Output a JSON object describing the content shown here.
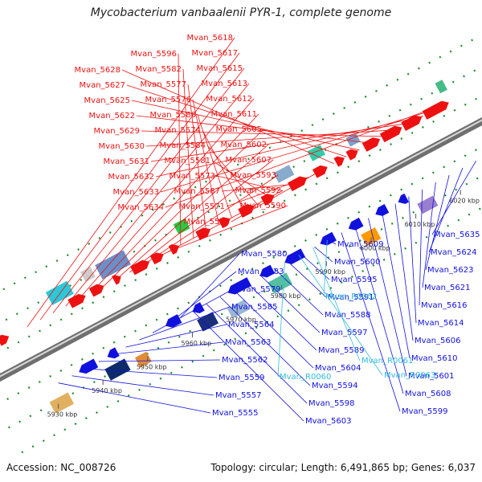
{
  "title": "Mycobacterium vanbaalenii PYR-1, complete genome",
  "footer": {
    "accession": "Accession: NC_008726",
    "summary": "Topology: circular; Length: 6,491,865 bp; Genes: 6,037"
  },
  "colors": {
    "plus": "#ee1111",
    "minus": "#1111dd",
    "rna": "#33bbdd",
    "backbone": "#888888"
  },
  "ticks": [
    "5930 kbp",
    "5940 kbp",
    "5950 kbp",
    "5960 kbp",
    "5970 kbp",
    "5980 kbp",
    "5990 kbp",
    "6000 kbp",
    "6010 kbp",
    "6020 kbp"
  ],
  "plus_labels": [
    "Mvan_5618",
    "Mvan_5617",
    "Mvan_5615",
    "Mvan_5613",
    "Mvan_5612",
    "Mvan_5611",
    "Mvan_5605",
    "Mvan_5602",
    "Mvan_5607",
    "Mvan_5593",
    "Mvan_5592",
    "Mvan_5590",
    "Mvan_5596",
    "Mvan_5582",
    "Mvan_5577",
    "Mvan_5576",
    "Mvan_5586",
    "Mvan_5574",
    "Mvan_5584",
    "Mvan_5581",
    "Mvan_5573",
    "Mvan_5587",
    "Mvan_5571",
    "Mvan_5578",
    "Mvan_5628",
    "Mvan_5627",
    "Mvan_5625",
    "Mvan_5622",
    "Mvan_5629",
    "Mvan_5630",
    "Mvan_5631",
    "Mvan_5632",
    "Mvan_5633",
    "Mvan_5634"
  ],
  "minus_labels": [
    "Mvan_5635",
    "Mvan_5624",
    "Mvan_5623",
    "Mvan_5621",
    "Mvan_5616",
    "Mvan_5614",
    "Mvan_5606",
    "Mvan_5610",
    "Mvan_5601",
    "Mvan_5608",
    "Mvan_5599",
    "Mvan_5609",
    "Mvan_5600",
    "Mvan_5595",
    "Mvan_5591",
    "Mvan_5588",
    "Mvan_5597",
    "Mvan_5589",
    "Mvan_5604",
    "Mvan_5594",
    "Mvan_5598",
    "Mvan_5603",
    "Mvan_5580",
    "Mvan_5583",
    "Mvan_5579",
    "Mvan_5585",
    "Mvan_5564",
    "Mvan_5563",
    "Mvan_5562",
    "Mvan_5559",
    "Mvan_5557",
    "Mvan_5555"
  ],
  "rna_labels": [
    "Mvan_R0062",
    "Mvan_R0061",
    "Mvan_R0063",
    "Mvan_R0060"
  ]
}
